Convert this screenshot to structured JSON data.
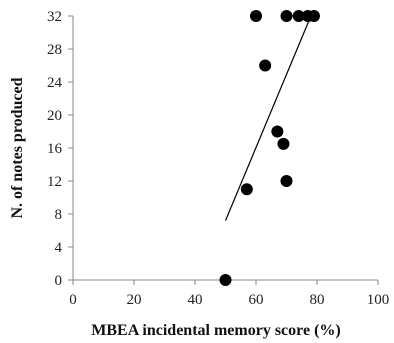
{
  "chart_data": {
    "type": "scatter",
    "xlabel": "MBEA incidental memory score (%)",
    "ylabel": "N. of notes produced",
    "xlim": [
      0,
      100
    ],
    "ylim": [
      0,
      32
    ],
    "xticks": [
      0,
      20,
      40,
      60,
      80,
      100
    ],
    "yticks": [
      0,
      4,
      8,
      12,
      16,
      20,
      24,
      28,
      32
    ],
    "points": [
      {
        "x": 50,
        "y": 0
      },
      {
        "x": 57,
        "y": 11
      },
      {
        "x": 60,
        "y": 32
      },
      {
        "x": 63,
        "y": 26
      },
      {
        "x": 67,
        "y": 18
      },
      {
        "x": 69,
        "y": 16.5
      },
      {
        "x": 70,
        "y": 12
      },
      {
        "x": 70,
        "y": 32
      },
      {
        "x": 74,
        "y": 32
      },
      {
        "x": 77,
        "y": 32
      },
      {
        "x": 79,
        "y": 32
      }
    ],
    "trendline": {
      "x": [
        50,
        78
      ],
      "y": [
        7.2,
        32
      ]
    },
    "grid": false,
    "legend": "none",
    "colors": {
      "marker": "#000000",
      "axis": "#888888",
      "trendline": "#000000"
    }
  }
}
